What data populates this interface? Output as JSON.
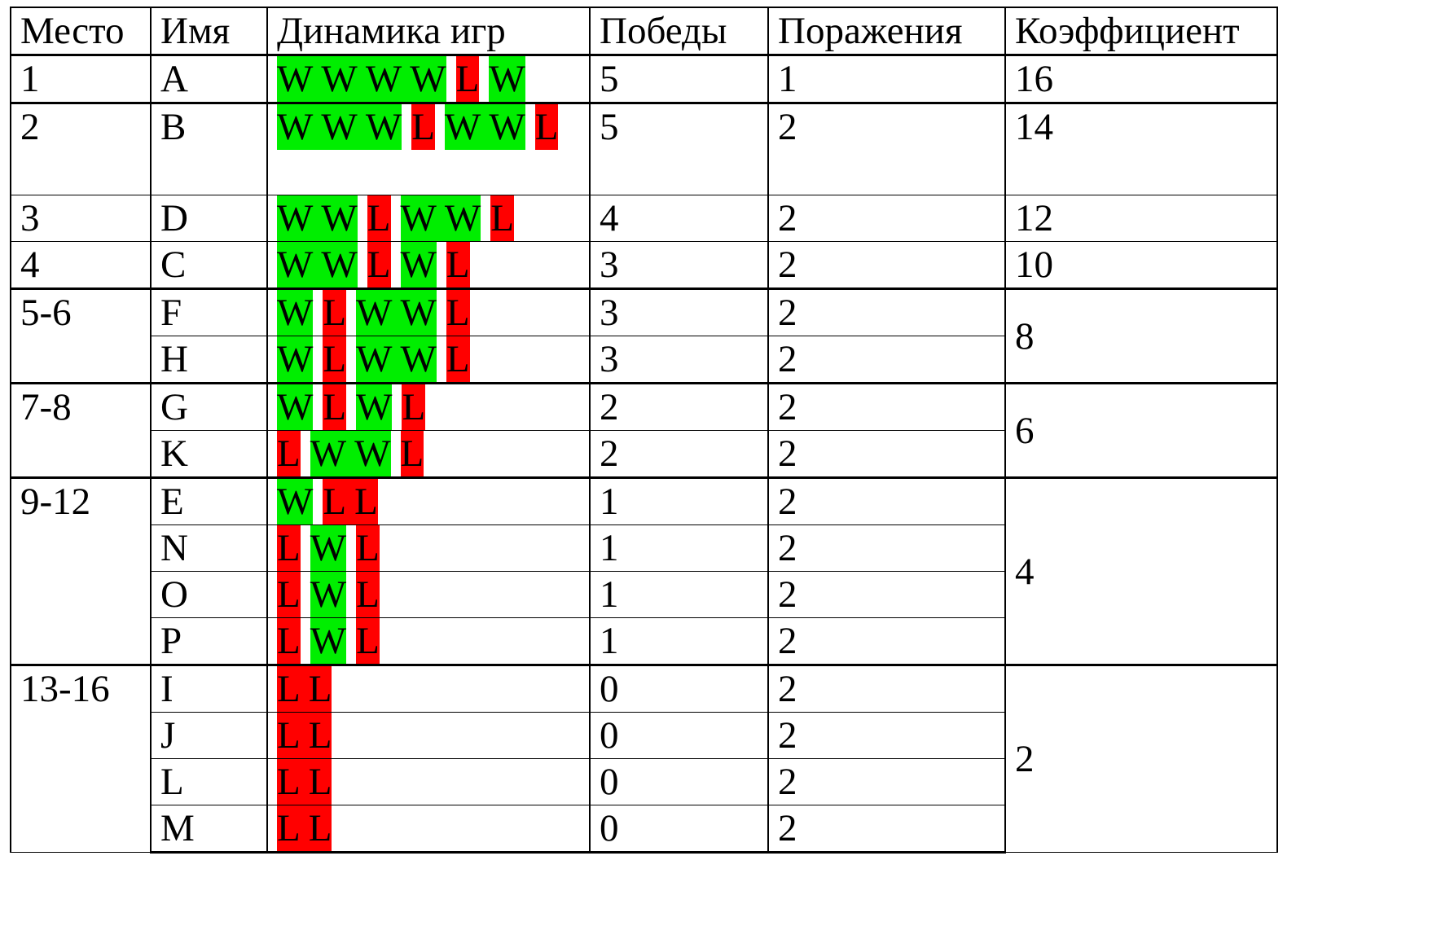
{
  "headers": {
    "place": "Место",
    "name": "Имя",
    "dynamics": "Динамика игр",
    "wins": "Победы",
    "losses": "Поражения",
    "coef": "Коэффициент"
  },
  "colors": {
    "win": "#00ee00",
    "loss": "#ff0000"
  },
  "rows": [
    {
      "place": "1",
      "name": "A",
      "games": [
        "W W W W",
        "L",
        "W"
      ],
      "wins": "5",
      "losses": "1",
      "coef": "16"
    },
    {
      "place": "2",
      "name": "B",
      "games": [
        "W W W",
        "L",
        "W W",
        "L"
      ],
      "wins": "5",
      "losses": "2",
      "coef": "14"
    },
    {
      "place": "3",
      "name": "D",
      "games": [
        "W W",
        "L",
        "W W",
        "L"
      ],
      "wins": "4",
      "losses": "2",
      "coef": "12"
    },
    {
      "place": "4",
      "name": "C",
      "games": [
        "W W",
        "L",
        "W",
        "L"
      ],
      "wins": "3",
      "losses": "2",
      "coef": "10"
    },
    {
      "place": "5-6",
      "name": "F",
      "games": [
        "W",
        "L",
        "W W",
        "L"
      ],
      "wins": "3",
      "losses": "2",
      "coef": "8"
    },
    {
      "name": "H",
      "games": [
        "W",
        "L",
        "W W",
        "L"
      ],
      "wins": "3",
      "losses": "2"
    },
    {
      "place": "7-8",
      "name": "G",
      "games": [
        "W",
        "L",
        "W",
        "L"
      ],
      "wins": "2",
      "losses": "2",
      "coef": "6"
    },
    {
      "name": "K",
      "games": [
        "L",
        "W W",
        "L"
      ],
      "wins": "2",
      "losses": "2"
    },
    {
      "place": "9-12",
      "name": "E",
      "games": [
        "W",
        "L L"
      ],
      "wins": "1",
      "losses": "2",
      "coef": "4"
    },
    {
      "name": "N",
      "games": [
        "L",
        "W",
        "L"
      ],
      "wins": "1",
      "losses": "2"
    },
    {
      "name": "O",
      "games": [
        "L",
        "W",
        "L"
      ],
      "wins": "1",
      "losses": "2"
    },
    {
      "name": "P",
      "games": [
        "L",
        "W",
        "L"
      ],
      "wins": "1",
      "losses": "2"
    },
    {
      "place": "13-16",
      "name": "I",
      "games": [
        "L L"
      ],
      "wins": "0",
      "losses": "2",
      "coef": "2"
    },
    {
      "name": "J",
      "games": [
        "L L"
      ],
      "wins": "0",
      "losses": "2"
    },
    {
      "name": "L",
      "games": [
        "L L"
      ],
      "wins": "0",
      "losses": "2"
    },
    {
      "name": "M",
      "games": [
        "L L"
      ],
      "wins": "0",
      "losses": "2"
    }
  ]
}
